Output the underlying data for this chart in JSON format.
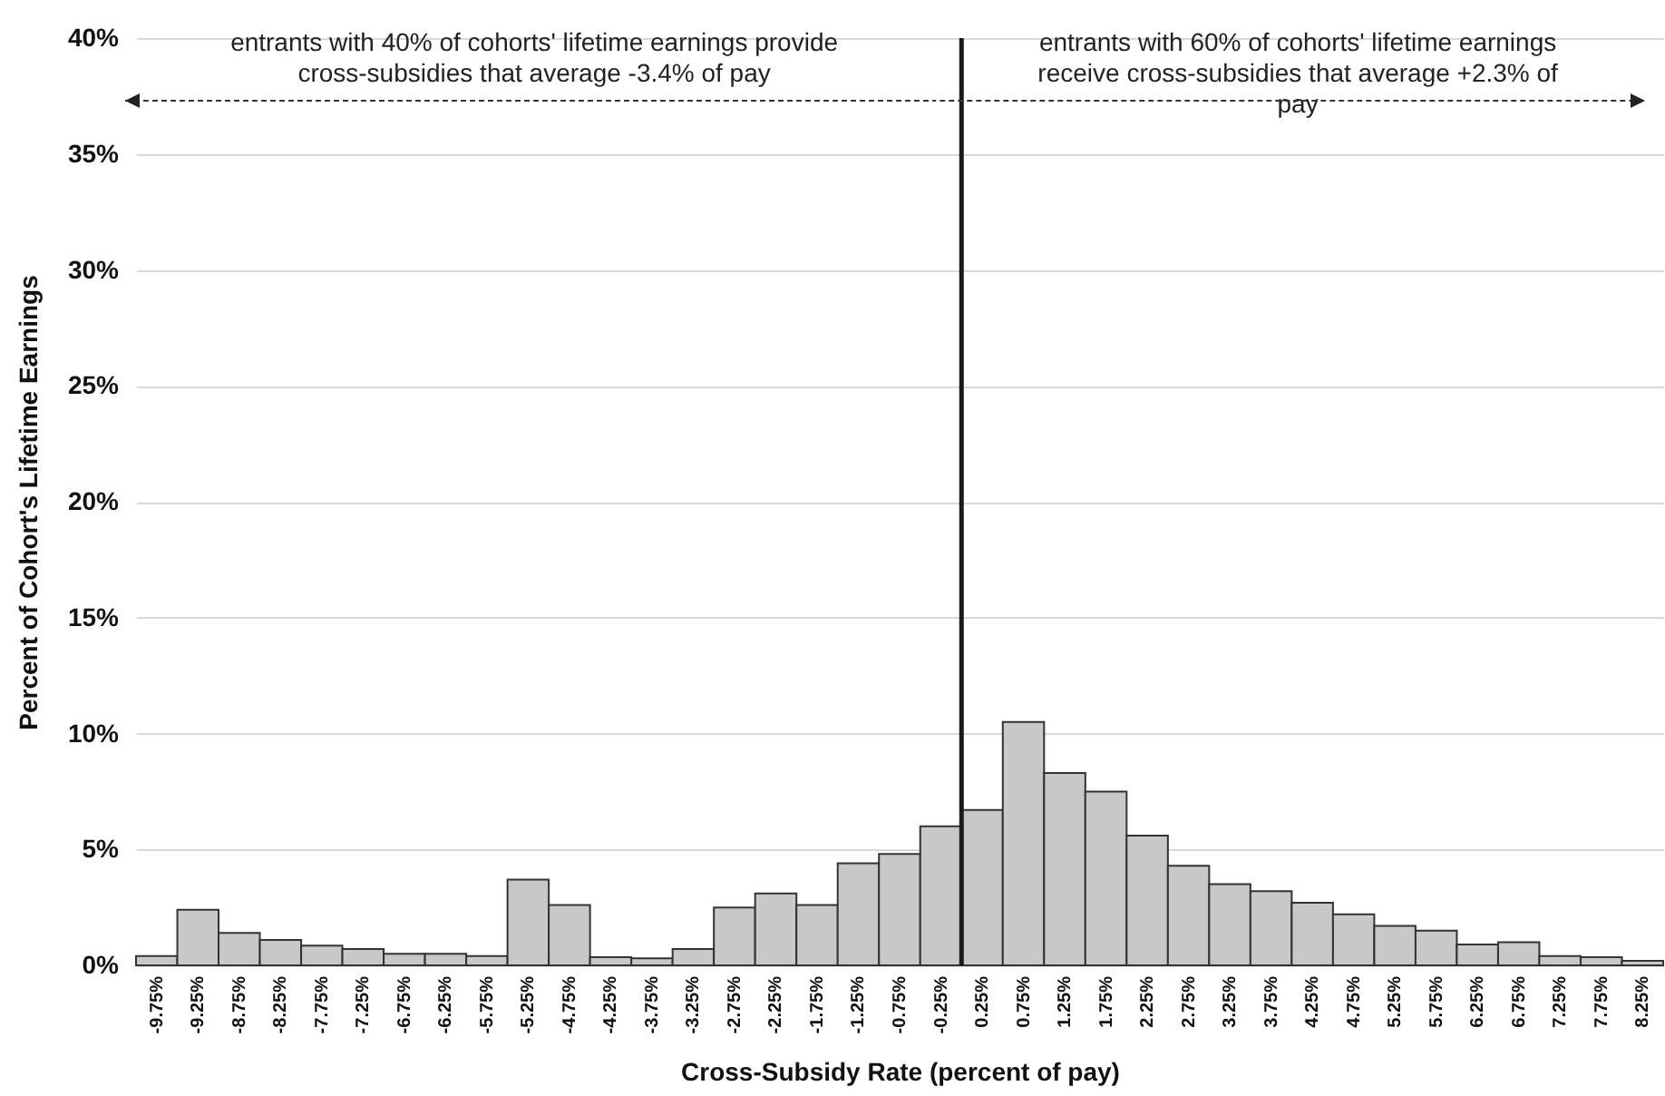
{
  "chart_data": {
    "type": "histogram",
    "xlabel": "Cross-Subsidy Rate (percent of pay)",
    "ylabel": "Percent of  Cohort's Lifetime Earnings",
    "bins": [
      -10,
      -9.5,
      -9,
      -8.5,
      -8,
      -7.5,
      -7,
      -6.5,
      -6,
      -5.5,
      -5,
      -4.5,
      -4,
      -3.5,
      -3,
      -2.5,
      -2,
      -1.5,
      -1,
      -0.5,
      0,
      0.5,
      1,
      1.5,
      2,
      2.5,
      3,
      3.5,
      4,
      4.5,
      5,
      5.5,
      6,
      6.5,
      7,
      7.5,
      8,
      8.5
    ],
    "values": [
      0.4,
      2.4,
      1.4,
      1.1,
      0.85,
      0.7,
      0.5,
      0.5,
      0.4,
      3.7,
      2.6,
      0.35,
      0.3,
      0.7,
      2.5,
      3.1,
      2.6,
      4.4,
      4.8,
      6.0,
      6.7,
      10.5,
      8.3,
      7.5,
      5.6,
      4.3,
      3.5,
      3.2,
      2.7,
      2.2,
      1.7,
      1.5,
      0.9,
      1.0,
      0.4,
      0.35,
      0.2
    ],
    "color": "#c8c8c8",
    "xlim": [
      -10,
      8.5
    ],
    "xticks": [
      {
        "value": -9.75,
        "label": "-9.75%"
      },
      {
        "value": -9.25,
        "label": "-9.25%"
      },
      {
        "value": -8.75,
        "label": "-8.75%"
      },
      {
        "value": -8.25,
        "label": "-8.25%"
      },
      {
        "value": -7.75,
        "label": "-7.75%"
      },
      {
        "value": -7.25,
        "label": "-7.25%"
      },
      {
        "value": -6.75,
        "label": "-6.75%"
      },
      {
        "value": -6.25,
        "label": "-6.25%"
      },
      {
        "value": -5.75,
        "label": "-5.75%"
      },
      {
        "value": -5.25,
        "label": "-5.25%"
      },
      {
        "value": -4.75,
        "label": "-4.75%"
      },
      {
        "value": -4.25,
        "label": "-4.25%"
      },
      {
        "value": -3.75,
        "label": "-3.75%"
      },
      {
        "value": -3.25,
        "label": "-3.25%"
      },
      {
        "value": -2.75,
        "label": "-2.75%"
      },
      {
        "value": -2.25,
        "label": "-2.25%"
      },
      {
        "value": -1.75,
        "label": "-1.75%"
      },
      {
        "value": -1.25,
        "label": "-1.25%"
      },
      {
        "value": -0.75,
        "label": "-0.75%"
      },
      {
        "value": -0.25,
        "label": "-0.25%"
      },
      {
        "value": 0.25,
        "label": "0.25%"
      },
      {
        "value": 0.75,
        "label": "0.75%"
      },
      {
        "value": 1.25,
        "label": "1.25%"
      },
      {
        "value": 1.75,
        "label": "1.75%"
      },
      {
        "value": 2.25,
        "label": "2.25%"
      },
      {
        "value": 2.75,
        "label": "2.75%"
      },
      {
        "value": 3.25,
        "label": "3.25%"
      },
      {
        "value": 3.75,
        "label": "3.75%"
      },
      {
        "value": 4.25,
        "label": "4.25%"
      },
      {
        "value": 4.75,
        "label": "4.75%"
      },
      {
        "value": 5.25,
        "label": "5.25%"
      },
      {
        "value": 5.75,
        "label": "5.75%"
      },
      {
        "value": 6.25,
        "label": "6.25%"
      },
      {
        "value": 6.75,
        "label": "6.75%"
      },
      {
        "value": 7.25,
        "label": "7.25%"
      },
      {
        "value": 7.75,
        "label": "7.75%"
      },
      {
        "value": 8.25,
        "label": "8.25%"
      }
    ],
    "ylim": [
      0,
      40
    ],
    "yticks": [
      {
        "value": 0,
        "label": "0%"
      },
      {
        "value": 5,
        "label": "5%"
      },
      {
        "value": 10,
        "label": "10%"
      },
      {
        "value": 15,
        "label": "15%"
      },
      {
        "value": 20,
        "label": "20%"
      },
      {
        "value": 25,
        "label": "25%"
      },
      {
        "value": 30,
        "label": "30%"
      },
      {
        "value": 35,
        "label": "35%"
      },
      {
        "value": 40,
        "label": "40%"
      }
    ],
    "grid": "y",
    "ref_lines": [
      {
        "axis": "x",
        "value": 0,
        "color": "#1a1a1a"
      }
    ],
    "annotations": [
      "entrants with 40% of cohorts' lifetime earnings provide cross-subsidies that average -3.4% of pay",
      "entrants with 60% of cohorts' lifetime earnings receive cross-subsidies that average +2.3% of pay"
    ]
  }
}
